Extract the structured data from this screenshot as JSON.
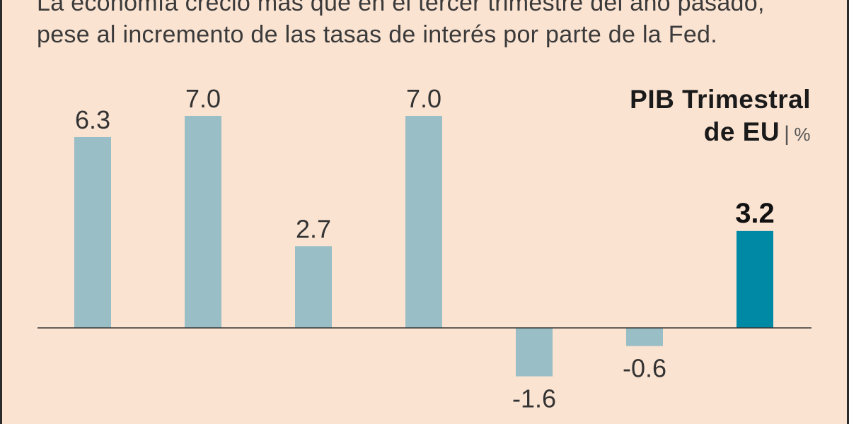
{
  "subtitle": {
    "line1": "La economía creció más que en el tercer trimestre del año pasado,",
    "line2": "pese al incremento de las tasas de interés por parte de la Fed."
  },
  "title": {
    "line1": "PIB Trimestral",
    "line2": "de EU",
    "separator": "|",
    "unit": "%"
  },
  "colors": {
    "background": "#fbe3d2",
    "bar": "#99bec6",
    "highlight": "#0089a5",
    "axis": "#333333"
  },
  "chart_data": {
    "type": "bar",
    "values": [
      6.3,
      7.0,
      2.7,
      7.0,
      -1.6,
      -0.6,
      3.2
    ],
    "labels": [
      "6.3",
      "7.0",
      "2.7",
      "7.0",
      "-1.6",
      "-0.6",
      "3.2"
    ],
    "highlight_index": 6,
    "grid": false,
    "zero_line": true
  }
}
